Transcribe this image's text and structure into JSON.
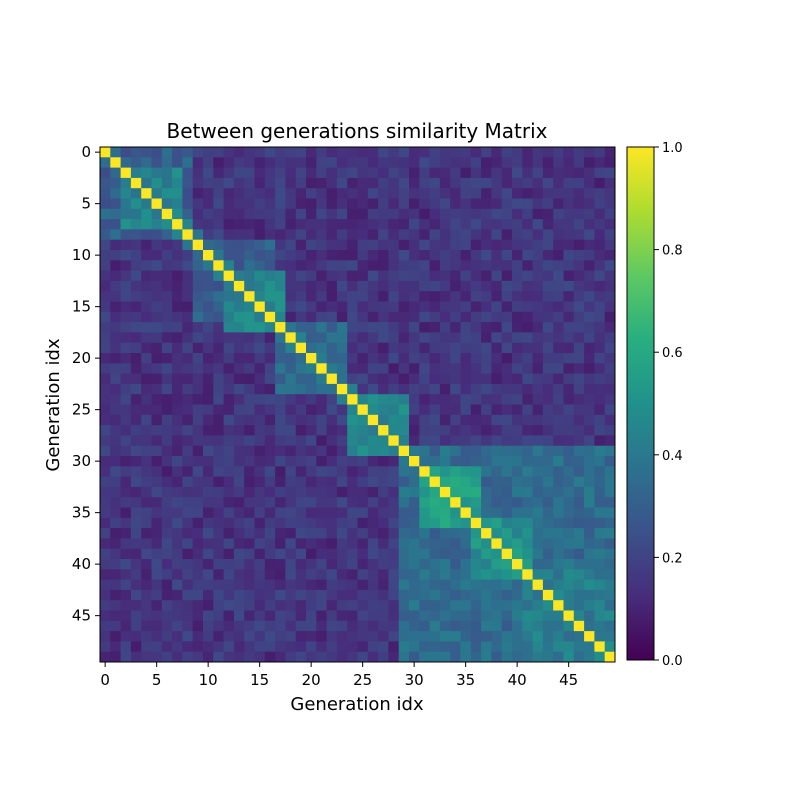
{
  "chart_data": {
    "type": "heatmap",
    "title": "Between generations similarity Matrix",
    "xlabel": "Generation idx",
    "ylabel": "Generation idx",
    "size": 50,
    "x_ticks": [
      0,
      5,
      10,
      15,
      20,
      25,
      30,
      35,
      40,
      45
    ],
    "y_ticks": [
      0,
      5,
      10,
      15,
      20,
      25,
      30,
      35,
      40,
      45
    ],
    "colorbar_ticks": [
      "0.0",
      "0.2",
      "0.4",
      "0.6",
      "0.8",
      "1.0"
    ],
    "value_range": [
      0,
      1
    ],
    "colormap": "viridis",
    "diagonal_value": 1.0,
    "blocks": [
      {
        "start": 0,
        "end": 8,
        "value": 0.3
      },
      {
        "start": 2,
        "end": 7,
        "value": 0.45
      },
      {
        "start": 9,
        "end": 16,
        "value": 0.3
      },
      {
        "start": 12,
        "end": 17,
        "value": 0.45
      },
      {
        "start": 17,
        "end": 23,
        "value": 0.35
      },
      {
        "start": 24,
        "end": 29,
        "value": 0.45
      },
      {
        "start": 29,
        "end": 49,
        "value": 0.35
      },
      {
        "start": 31,
        "end": 36,
        "value": 0.55
      },
      {
        "start": 36,
        "end": 41,
        "value": 0.5
      },
      {
        "start": 41,
        "end": 49,
        "value": 0.42
      }
    ],
    "background_value": 0.15
  }
}
